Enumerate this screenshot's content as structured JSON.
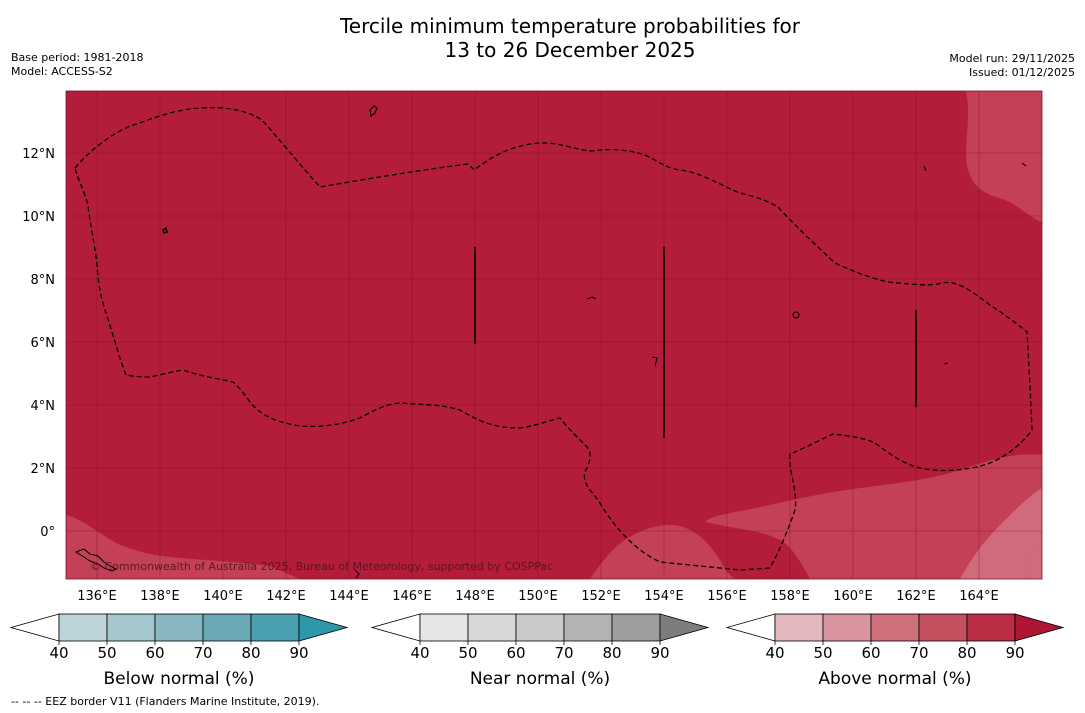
{
  "title": {
    "line1": "Tercile minimum temperature probabilities for",
    "line2": "13 to 26 December 2025"
  },
  "meta_left": {
    "base_period": "Base period: 1981-2018",
    "model": "Model: ACCESS-S2"
  },
  "meta_right": {
    "model_run": "Model run: 29/11/2025",
    "issued": "Issued: 01/12/2025"
  },
  "map": {
    "lon_labels": [
      "136°E",
      "138°E",
      "140°E",
      "142°E",
      "144°E",
      "146°E",
      "148°E",
      "150°E",
      "152°E",
      "154°E",
      "156°E",
      "158°E",
      "160°E",
      "162°E",
      "164°E"
    ],
    "lat_labels": [
      "12°N",
      "10°N",
      "8°N",
      "6°N",
      "4°N",
      "2°N",
      "0°"
    ],
    "copyright": "© Commonwealth of Australia 2025, Bureau of Meteorology, supported by COSPPac",
    "colors": {
      "above_80_90": "#b41d3a",
      "above_70_80": "#c44056",
      "above_60_70": "#cf6b7a",
      "gridline": "#6a1020",
      "eez": "#000000"
    }
  },
  "colorbars": [
    {
      "title": "Below normal (%)",
      "ticks": [
        "40",
        "50",
        "60",
        "70",
        "80",
        "90"
      ],
      "colors": [
        "#ffffff",
        "#bcd4da",
        "#a4c6cd",
        "#88b7c1",
        "#6aa8b5",
        "#4aa0b0",
        "#2f97aa"
      ]
    },
    {
      "title": "Near normal (%)",
      "ticks": [
        "40",
        "50",
        "60",
        "70",
        "80",
        "90"
      ],
      "colors": [
        "#ffffff",
        "#e6e6e6",
        "#d8d8d8",
        "#c9c9c9",
        "#b3b3b3",
        "#9e9e9e",
        "#7d7d7d"
      ]
    },
    {
      "title": "Above normal (%)",
      "ticks": [
        "40",
        "50",
        "60",
        "70",
        "80",
        "90"
      ],
      "colors": [
        "#ffffff",
        "#e3b8be",
        "#d9959f",
        "#cf707d",
        "#c4505f",
        "#bb2d44",
        "#b01535"
      ]
    }
  ],
  "footnote": "--  --  -- EEZ border V11 (Flanders Marine Institute, 2019)."
}
